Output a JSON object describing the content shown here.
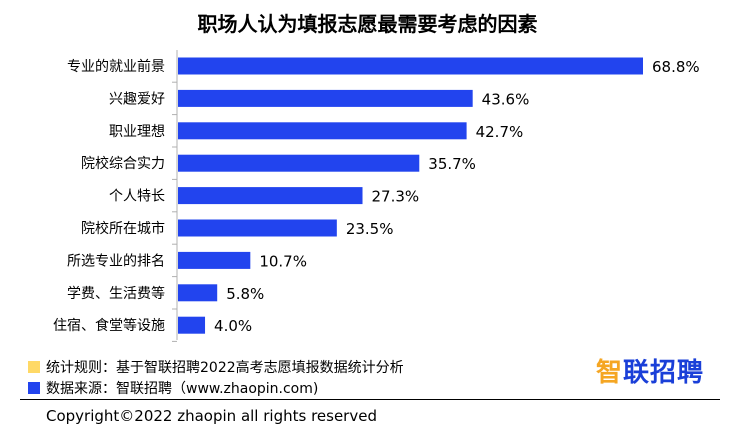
{
  "chart_data": {
    "type": "bar",
    "orientation": "horizontal",
    "title": "职场人认为填报志愿最需要考虑的因素",
    "categories": [
      "专业的就业前景",
      "兴趣爱好",
      "职业理想",
      "院校综合实力",
      "个人特长",
      "院校所在城市",
      "所选专业的排名",
      "学费、生活费等",
      "住宿、食堂等设施"
    ],
    "values": [
      68.8,
      43.6,
      42.7,
      35.7,
      27.3,
      23.5,
      10.7,
      5.8,
      4.0
    ],
    "value_labels": [
      "68.8%",
      "43.6%",
      "42.7%",
      "35.7%",
      "27.3%",
      "23.5%",
      "10.7%",
      "5.8%",
      "4.0%"
    ],
    "xlim": [
      0,
      68.8
    ],
    "bar_color": "#2244ee",
    "grid": false
  },
  "notes": [
    {
      "text": "统计规则：基于智联招聘2022高考志愿填报数据统计分析",
      "color": "#ffd966"
    },
    {
      "text": "数据来源：智联招聘（www.zhaopin.com)",
      "color": "#2244ee"
    }
  ],
  "logo": {
    "part1": "智",
    "part2": "联招聘",
    "color1": "#f5a623",
    "color2": "#1a3fd8"
  },
  "copyright": "Copyright©2022 zhaopin all rights reserved"
}
